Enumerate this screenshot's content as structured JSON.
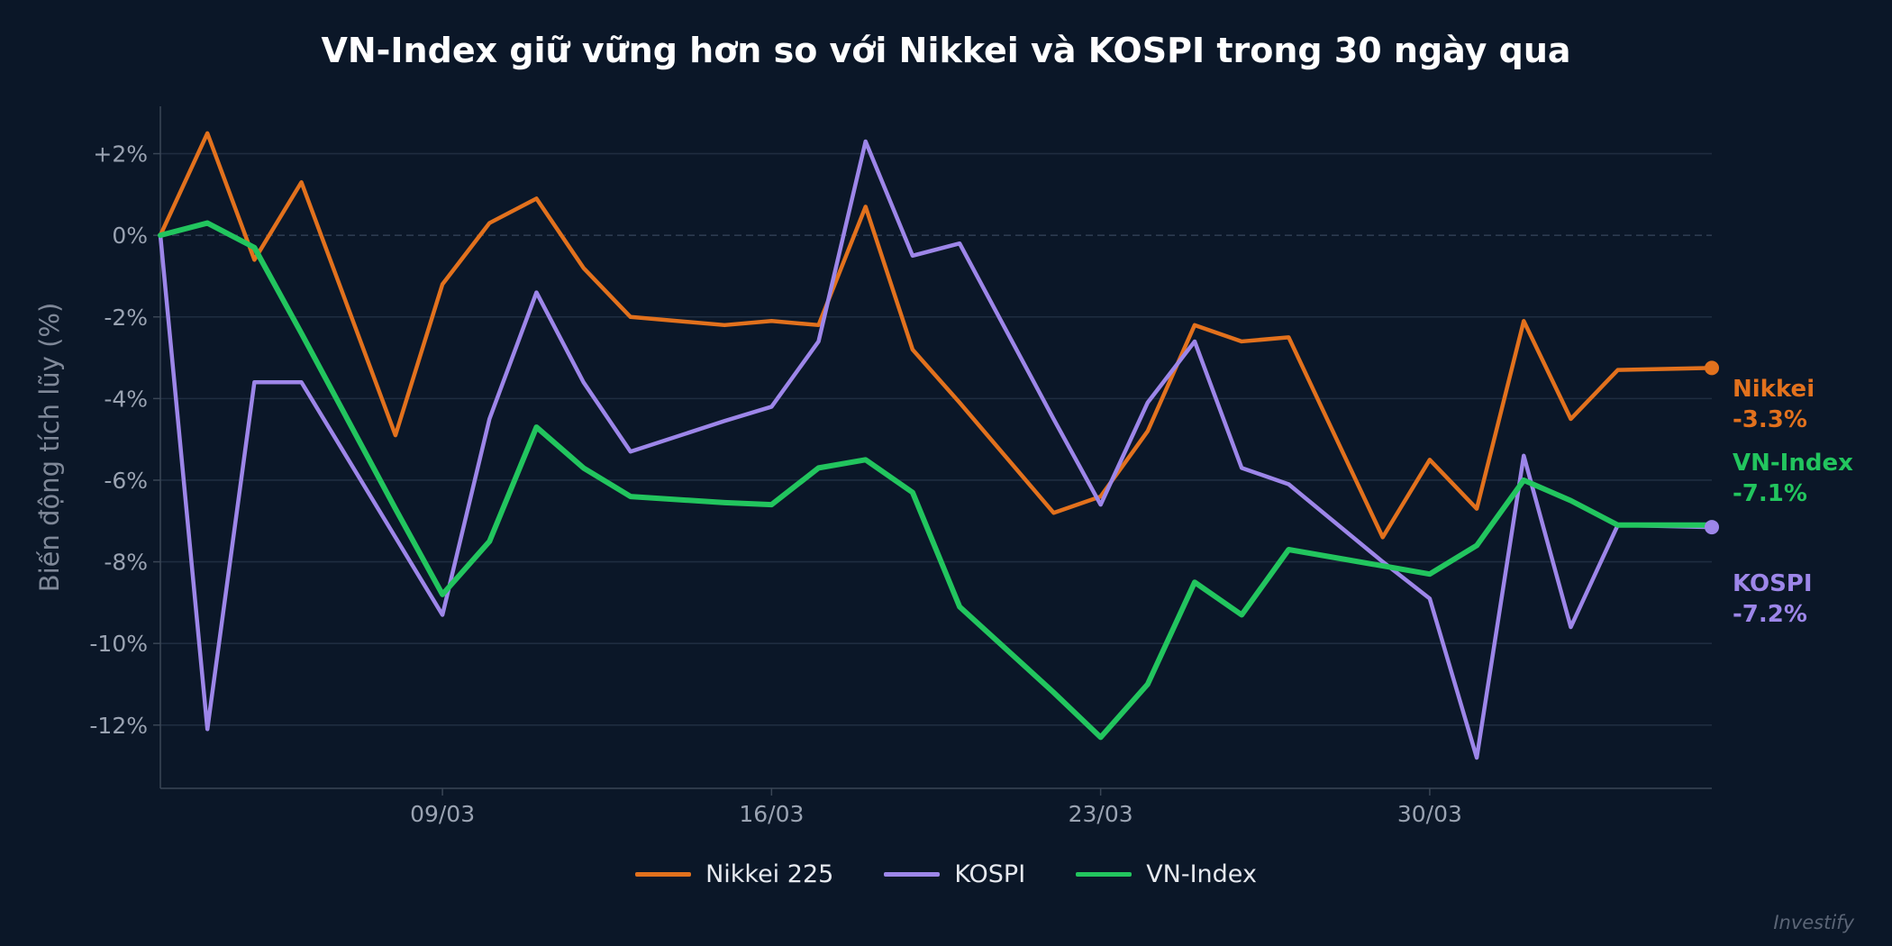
{
  "chart_data": {
    "type": "line",
    "title": "VN-Index giữ vững hơn so với Nikkei và KOSPI trong 30 ngày qua",
    "xlabel": "",
    "ylabel": "Biến động tích lũy (%)",
    "x": [
      "03/03",
      "04/03",
      "05/03",
      "06/03",
      "08/03",
      "09/03",
      "10/03",
      "11/03",
      "12/03",
      "13/03",
      "15/03",
      "16/03",
      "17/03",
      "18/03",
      "19/03",
      "20/03",
      "22/03",
      "23/03",
      "24/03",
      "25/03",
      "26/03",
      "27/03",
      "29/03",
      "30/03",
      "31/03",
      "01/04",
      "02/04",
      "03/04",
      "05/04"
    ],
    "xticks": [
      "09/03",
      "16/03",
      "23/03",
      "30/03"
    ],
    "xlim": [
      "03/03",
      "05/04"
    ],
    "yticks": [
      2,
      0,
      -2,
      -4,
      -6,
      -8,
      -10,
      -12
    ],
    "ytick_labels": [
      "+2%",
      "0%",
      "-2%",
      "-4%",
      "-6%",
      "-8%",
      "-10%",
      "-12%"
    ],
    "ylim": [
      -13.55,
      3.16
    ],
    "grid": true,
    "legend_position": "bottom-center",
    "series": [
      {
        "name": "Nikkei 225",
        "short_label": "Nikkei",
        "end_label": "-3.3%",
        "color": "#e2711d",
        "values": [
          0,
          2.5,
          -0.6,
          1.3,
          -4.9,
          -1.2,
          0.3,
          0.9,
          -0.8,
          -2.0,
          -2.2,
          -2.1,
          -2.2,
          0.7,
          -2.8,
          -4.1,
          -6.8,
          -6.4,
          -4.8,
          -2.2,
          -2.6,
          -2.5,
          -7.4,
          -5.5,
          -6.7,
          -2.1,
          -4.5,
          -3.3,
          -3.25
        ]
      },
      {
        "name": "KOSPI",
        "short_label": "KOSPI",
        "end_label": "-7.2%",
        "color": "#9d86e9",
        "values": [
          0,
          -12.1,
          -3.6,
          -3.6,
          -7.4,
          -9.3,
          -4.5,
          -1.4,
          -3.6,
          -5.3,
          -4.55,
          -4.2,
          -2.6,
          2.3,
          -0.5,
          -0.2,
          -4.5,
          -6.6,
          -4.1,
          -2.6,
          -5.7,
          -6.1,
          -8.0,
          -8.9,
          -12.8,
          -5.4,
          -9.6,
          -7.1,
          -7.15
        ]
      },
      {
        "name": "VN-Index",
        "short_label": "VN-Index",
        "end_label": "-7.1%",
        "color": "#22c55e",
        "values": [
          0,
          0.3,
          -0.3,
          -2.4,
          -6.7,
          -8.8,
          -7.5,
          -4.7,
          -5.7,
          -6.4,
          -6.55,
          -6.6,
          -5.7,
          -5.5,
          -6.3,
          -9.1,
          -11.2,
          -12.3,
          -11.0,
          -8.5,
          -9.3,
          -7.7,
          -8.1,
          -8.3,
          -7.6,
          -6.0,
          -6.5,
          -7.1,
          -7.1
        ]
      }
    ]
  },
  "watermark": "Investify",
  "colors": {
    "background": "#0b1728",
    "grid": "#1f2d40",
    "axis": "#3a4656",
    "tick_text": "#9aa3b2"
  }
}
